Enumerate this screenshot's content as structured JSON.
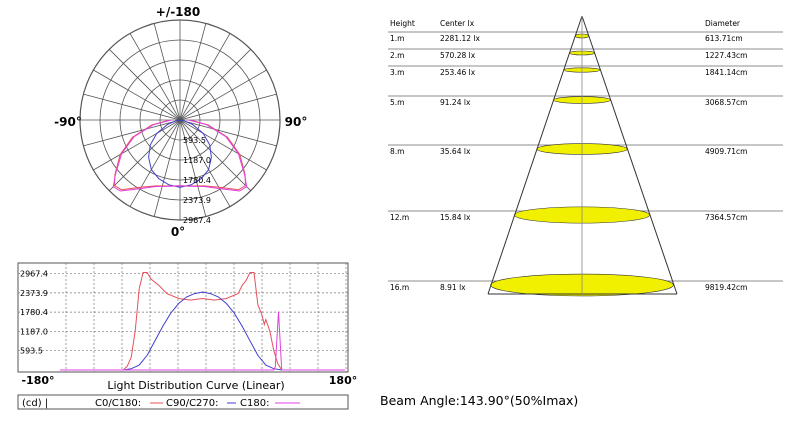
{
  "polar": {
    "label_top": "+/-180",
    "label_left": "-90°",
    "label_right": "90°",
    "label_bottom": "0°",
    "radial_labels": [
      "593.5",
      "1187.0",
      "1780.4",
      "2373.9",
      "2967.4"
    ]
  },
  "linear": {
    "title": "Light Distribution Curve (Linear)",
    "x_left": "-180°",
    "x_right": "180°",
    "y_ticks": [
      "593.5",
      "1187.0",
      "1780.4",
      "2373.9",
      "2967.4"
    ],
    "legend": {
      "unit": "(cd) |",
      "c0": "C0/C180:",
      "c90": "C90/C270:",
      "c180": "C180:"
    }
  },
  "beam_angle": "Beam Angle:143.90°(50%Imax)",
  "cone_table": {
    "headers": [
      "Height",
      "Center lx",
      "Diameter"
    ],
    "rows": [
      {
        "height": "1.m",
        "center": "2281.12 lx",
        "diameter": "613.71cm"
      },
      {
        "height": "2.m",
        "center": "570.28 lx",
        "diameter": "1227.43cm"
      },
      {
        "height": "3.m",
        "center": "253.46 lx",
        "diameter": "1841.14cm"
      },
      {
        "height": "5.m",
        "center": "91.24 lx",
        "diameter": "3068.57cm"
      },
      {
        "height": "8.m",
        "center": "35.64 lx",
        "diameter": "4909.71cm"
      },
      {
        "height": "12.m",
        "center": "15.84 lx",
        "diameter": "7364.57cm"
      },
      {
        "height": "16.m",
        "center": "8.91 lx",
        "diameter": "9819.42cm"
      }
    ]
  },
  "colors": {
    "c0": "#e8505a",
    "c90": "#4040d0",
    "c180": "#e040e0",
    "ellipse": "#f0f000"
  },
  "chart_data": [
    {
      "type": "polar",
      "rmax": 2967.4,
      "series": [
        {
          "name": "C0/C180",
          "angles": [
            -90,
            -80,
            -70,
            -60,
            -50,
            -45,
            -40,
            -30,
            -20,
            -10,
            0,
            10,
            20,
            30,
            40,
            45,
            50,
            60,
            70,
            80,
            90
          ],
          "values": [
            300,
            850,
            1500,
            2050,
            2520,
            2750,
            2700,
            2300,
            2080,
            1990,
            1950,
            1990,
            2080,
            2300,
            2700,
            2750,
            2520,
            2050,
            1500,
            850,
            300
          ]
        },
        {
          "name": "C90/C270",
          "angles": [
            -90,
            -80,
            -70,
            -60,
            -50,
            -40,
            -30,
            -20,
            -10,
            0,
            10,
            20,
            30,
            40,
            50,
            60,
            70,
            80,
            90
          ],
          "values": [
            0,
            100,
            400,
            800,
            1150,
            1450,
            1700,
            1850,
            1950,
            2000,
            1950,
            1850,
            1700,
            1450,
            1150,
            800,
            400,
            100,
            0
          ]
        },
        {
          "name": "C180",
          "angles": [
            -90,
            -80,
            -70,
            -60,
            -50,
            -45,
            -40,
            -30,
            -20,
            -10,
            0,
            10,
            20,
            30,
            40,
            45,
            50,
            60,
            70,
            80,
            90
          ],
          "values": [
            250,
            800,
            1450,
            2000,
            2500,
            2800,
            2750,
            2350,
            2100,
            2000,
            1950,
            2000,
            2100,
            2350,
            2750,
            2800,
            2500,
            2000,
            1450,
            800,
            250
          ]
        }
      ]
    },
    {
      "type": "line",
      "title": "Light Distribution Curve (Linear)",
      "xlim": [
        -180,
        180
      ],
      "ylim": [
        0,
        3200
      ],
      "series": [
        {
          "name": "C0/C180",
          "x": [
            -180,
            -100,
            -95,
            -90,
            -85,
            -80,
            -75,
            -70,
            -65,
            -55,
            -45,
            -30,
            -15,
            0,
            15,
            30,
            45,
            50,
            55,
            60,
            65,
            70,
            75,
            78,
            80,
            85,
            90,
            95,
            100,
            180
          ],
          "y": [
            0,
            0,
            120,
            400,
            1200,
            2500,
            3000,
            3000,
            2800,
            2600,
            2350,
            2200,
            2150,
            2200,
            2150,
            2200,
            2350,
            2600,
            2750,
            3000,
            3000,
            2000,
            1700,
            1400,
            1550,
            1200,
            600,
            200,
            0,
            0
          ]
        },
        {
          "name": "C90/C270",
          "x": [
            -180,
            -100,
            -90,
            -80,
            -70,
            -60,
            -50,
            -40,
            -30,
            -20,
            -10,
            0,
            10,
            20,
            30,
            40,
            50,
            60,
            70,
            80,
            90,
            100,
            180
          ],
          "y": [
            0,
            0,
            40,
            150,
            450,
            900,
            1350,
            1750,
            2050,
            2250,
            2350,
            2400,
            2350,
            2250,
            2050,
            1750,
            1350,
            900,
            450,
            150,
            40,
            0,
            0
          ]
        },
        {
          "name": "C180",
          "x": [
            -180,
            90,
            92,
            96,
            100,
            180
          ],
          "y": [
            0,
            0,
            100,
            1800,
            0,
            0
          ]
        }
      ]
    }
  ]
}
